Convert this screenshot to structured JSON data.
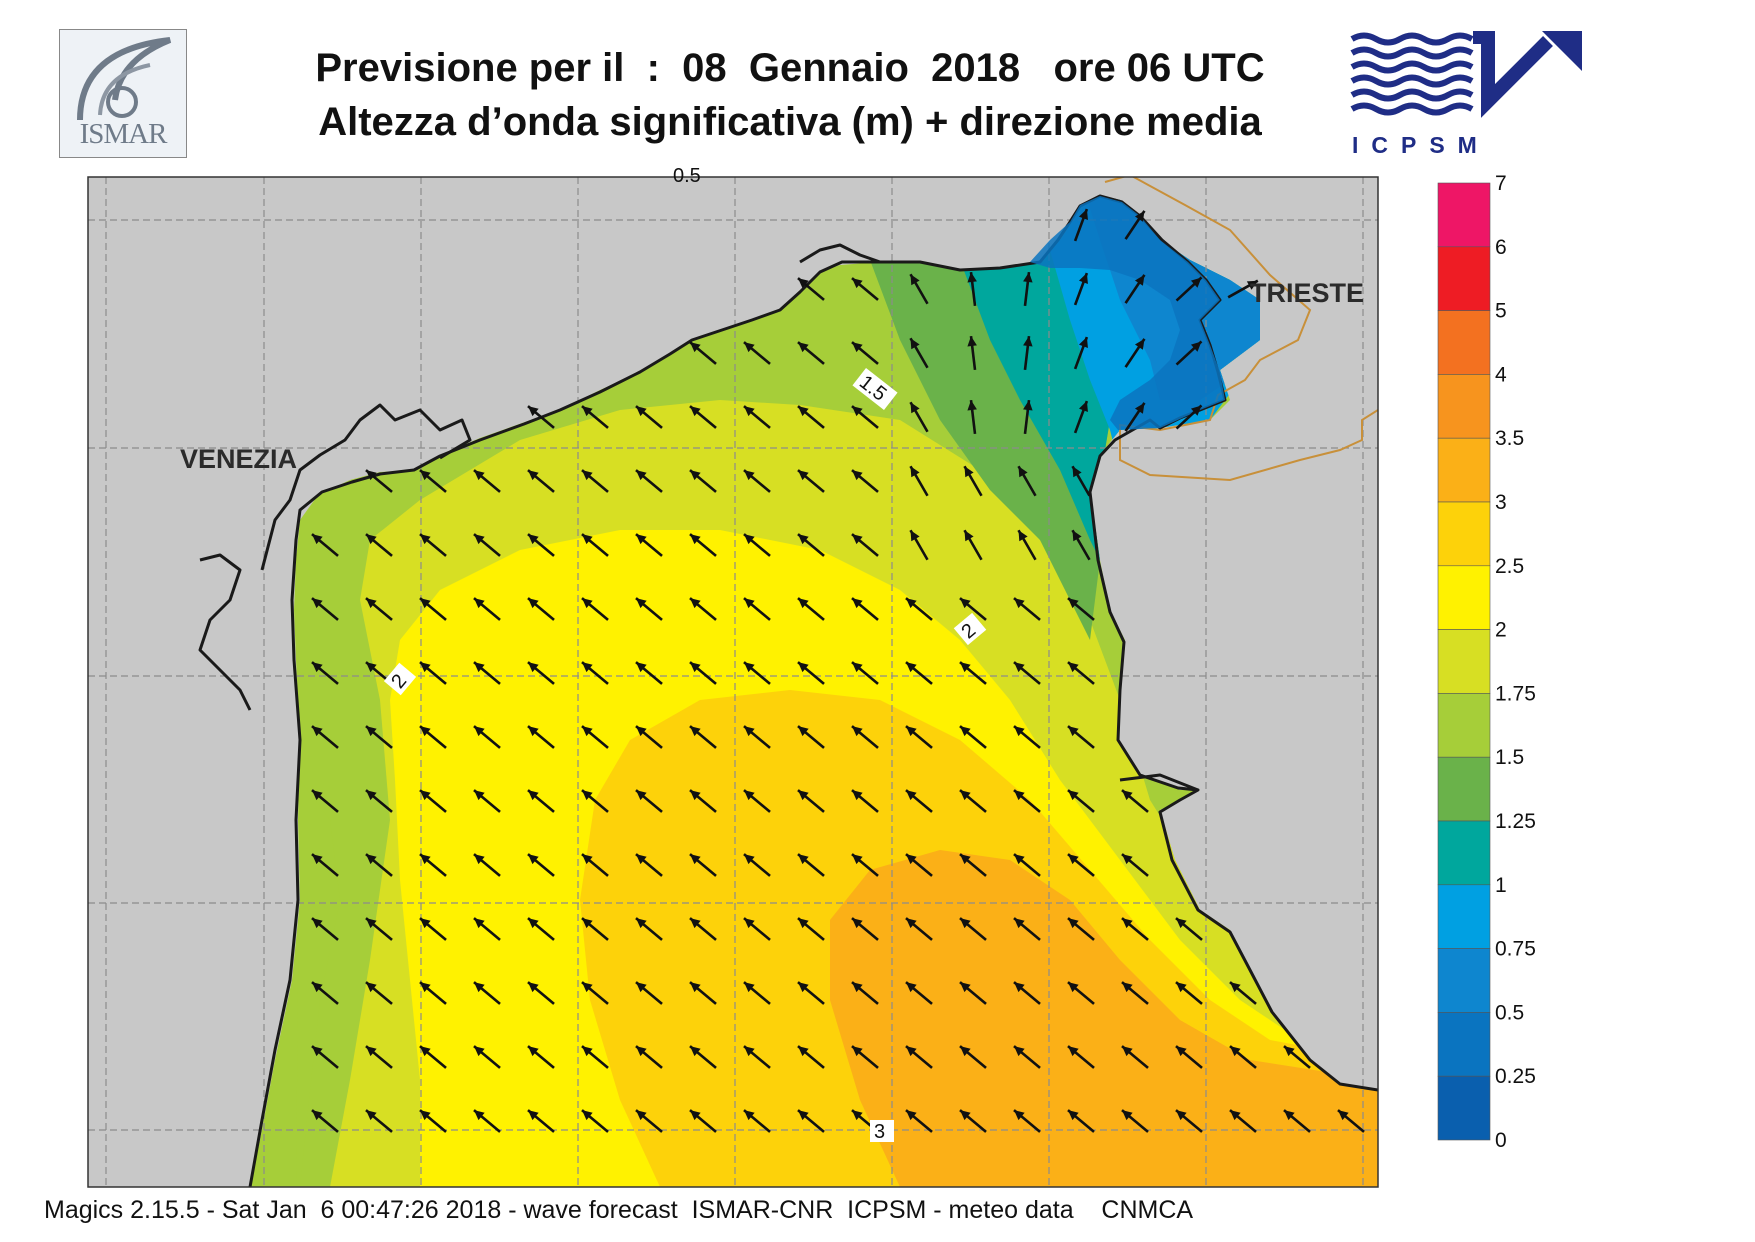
{
  "header": {
    "title_line1": "Previsione per il  :  08  Gennaio  2018   ore 06 UTC",
    "title_line2": "Altezza d’onda significativa (m) + direzione media"
  },
  "logos": {
    "left": "ISMAR",
    "right": "ICPSM"
  },
  "map": {
    "place_labels": [
      "VENEZIA",
      "TRIESTE"
    ],
    "contour_labels": [
      "1.5",
      "2",
      "2",
      "3",
      "0.5"
    ],
    "arrow_direction": "north-west",
    "colors": {
      "land": "#c8c8c8",
      "coastline": "#1a1a1a",
      "border": "#c8903a",
      "grid": "#8c8c8c"
    }
  },
  "legend": {
    "ticks": [
      "7",
      "6",
      "5",
      "4",
      "3.5",
      "3",
      "2.5",
      "2",
      "1.75",
      "1.5",
      "1.25",
      "1",
      "0.75",
      "0.5",
      "0.25",
      "0"
    ],
    "colors": [
      "#ee1666",
      "#ee1c24",
      "#f37120",
      "#f7941e",
      "#fbb017",
      "#fdd20a",
      "#fff200",
      "#d7df23",
      "#a6ce39",
      "#6ab24a",
      "#00a79d",
      "#00a0e2",
      "#0e86cf",
      "#0a74c0",
      "#0a5fae"
    ]
  },
  "footer": {
    "text": "Magics 2.15.5 - Sat Jan  6 00:47:26 2018 - wave forecast  ISMAR-CNR  ICPSM - meteo data    CNMCA"
  }
}
